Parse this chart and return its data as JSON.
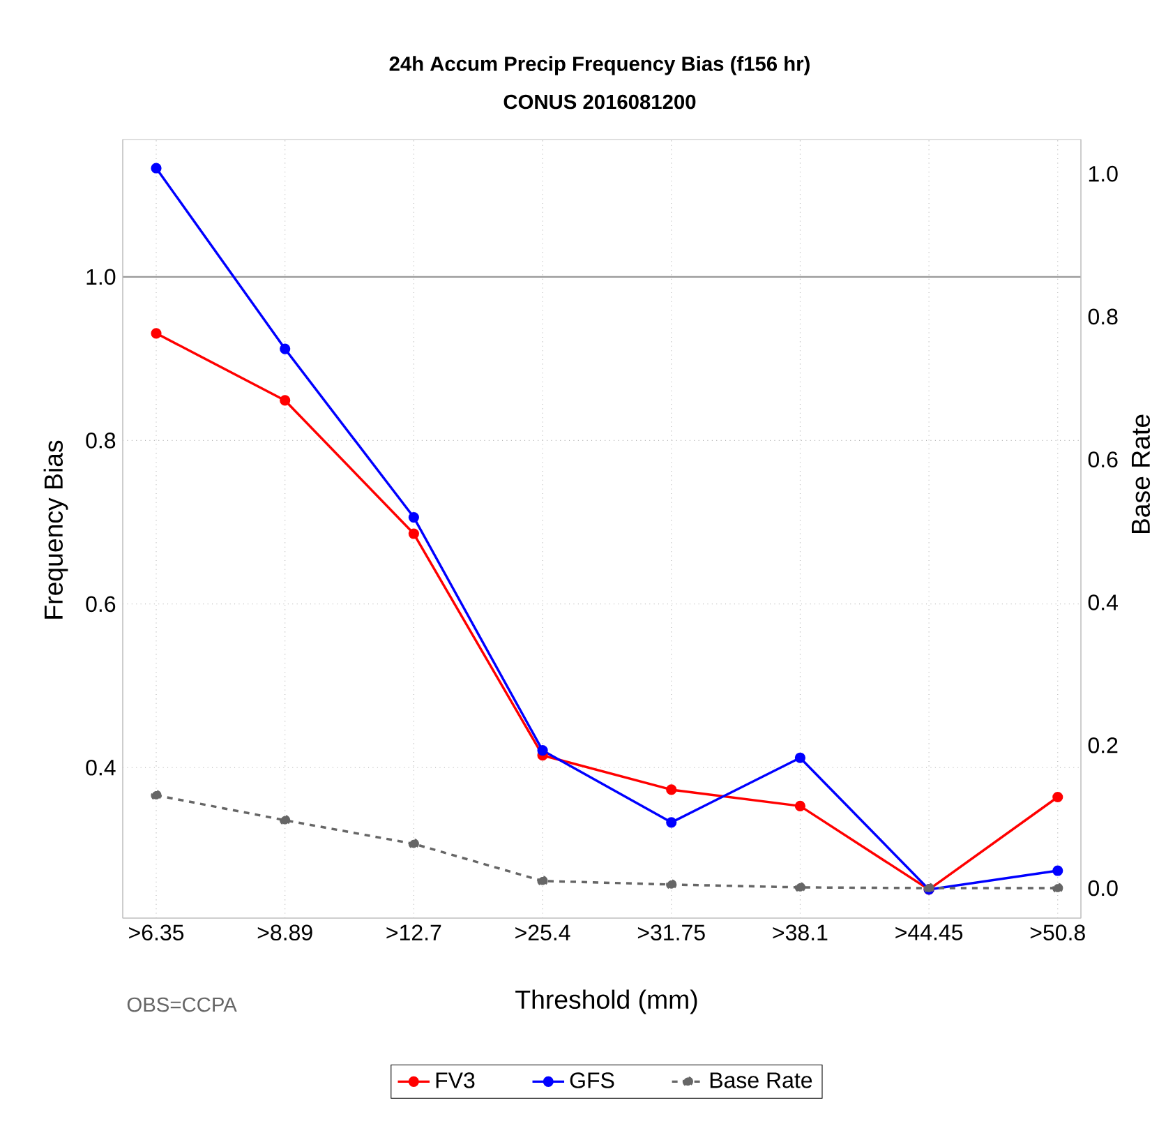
{
  "chart_data": {
    "type": "line",
    "title": "24h Accum Precip Frequency Bias (f156 hr)",
    "subtitle": "CONUS 2016081200",
    "xlabel": "Threshold (mm)",
    "ylabel": "Frequency Bias",
    "y2label": "Base Rate",
    "categories": [
      ">6.35",
      ">8.89",
      ">12.7",
      ">25.4",
      ">31.75",
      ">38.1",
      ">44.45",
      ">50.8"
    ],
    "series": [
      {
        "name": "FV3",
        "color": "#ff0000",
        "values": [
          0.931,
          0.849,
          0.686,
          0.415,
          0.373,
          0.353,
          0.251,
          0.364
        ]
      },
      {
        "name": "GFS",
        "color": "#0000ff",
        "values": [
          1.133,
          0.912,
          0.706,
          0.421,
          0.333,
          0.412,
          0.251,
          0.274
        ]
      },
      {
        "name": "Base Rate",
        "color": "#666666",
        "axis": "y2",
        "line_style": "dashed",
        "values": [
          0.13,
          0.095,
          0.062,
          0.01,
          0.005,
          0.001,
          0.0,
          0.0
        ]
      }
    ],
    "ylim": [
      0.216,
      1.168
    ],
    "yticks": [
      0.4,
      0.6,
      0.8,
      {
        "value": 1.0,
        "label": "1.0"
      }
    ],
    "y2lim": [
      -0.042,
      1.048
    ],
    "y2ticks": [
      {
        "value": 0.0,
        "label": "0.0"
      },
      0.2,
      0.4,
      0.6,
      0.8,
      {
        "value": 1.0,
        "label": "1.0"
      }
    ],
    "ref_lines": [
      {
        "axis": "y",
        "value": 1.0,
        "color": "#999999"
      }
    ],
    "annotations": [
      "OBS=CCPA"
    ],
    "grid": true,
    "legend": "bottom",
    "marker": "circle",
    "line_style": "solid"
  }
}
